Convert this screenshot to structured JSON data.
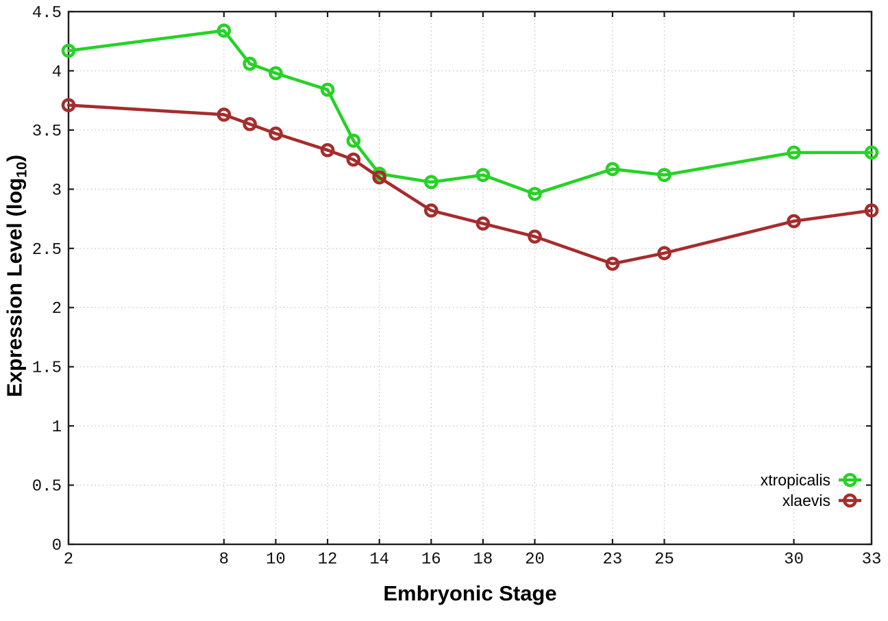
{
  "chart_data": {
    "type": "line",
    "title": "",
    "xlabel": "Embryonic Stage",
    "ylabel": "Expression Level (log10)",
    "ylabel_rich": {
      "pre": "Expression Level (log",
      "sub": "10",
      "post": ")"
    },
    "xlim": [
      2,
      33
    ],
    "ylim": [
      0,
      4.5
    ],
    "x_ticks": [
      2,
      8,
      10,
      12,
      14,
      16,
      18,
      20,
      23,
      25,
      30,
      33
    ],
    "y_ticks": [
      0,
      0.5,
      1,
      1.5,
      2,
      2.5,
      3,
      3.5,
      4,
      4.5
    ],
    "grid": true,
    "legend_position": "inside-bottom-right",
    "x": [
      2,
      8,
      9,
      10,
      12,
      13,
      14,
      16,
      18,
      20,
      23,
      25,
      30,
      33
    ],
    "series": [
      {
        "name": "xtropicalis",
        "color": "#26d226",
        "marker": "open-circle",
        "values": [
          4.17,
          4.34,
          4.06,
          3.98,
          3.84,
          3.41,
          3.13,
          3.06,
          3.12,
          2.96,
          3.17,
          3.12,
          3.31,
          3.31
        ]
      },
      {
        "name": "xlaevis",
        "color": "#a62c2c",
        "marker": "open-circle",
        "values": [
          3.71,
          3.63,
          3.55,
          3.47,
          3.33,
          3.25,
          3.1,
          2.82,
          2.71,
          2.6,
          2.37,
          2.46,
          2.73,
          2.82
        ]
      }
    ],
    "colors": {
      "axis": "#1c1c1c",
      "grid": "#c4c4c4",
      "tick_text": "#111111"
    }
  }
}
